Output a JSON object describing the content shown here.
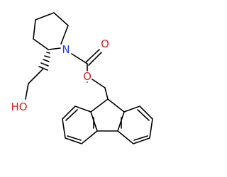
{
  "atoms": [
    {
      "label": "N"
    },
    {
      "label": "O"
    },
    {
      "label": "O"
    },
    {
      "label": "HO"
    }
  ]
}
